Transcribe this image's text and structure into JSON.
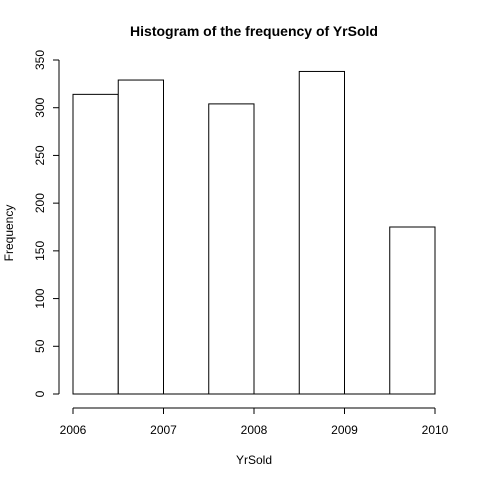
{
  "chart_data": {
    "type": "bar",
    "title": "Histogram of the frequency of YrSold",
    "xlabel": "YrSold",
    "ylabel": "Frequency",
    "bins": [
      {
        "start": 2006.0,
        "end": 2006.5,
        "value": 314
      },
      {
        "start": 2006.5,
        "end": 2007.0,
        "value": 329
      },
      {
        "start": 2007.0,
        "end": 2007.5,
        "value": 0
      },
      {
        "start": 2007.5,
        "end": 2008.0,
        "value": 304
      },
      {
        "start": 2008.0,
        "end": 2008.5,
        "value": 0
      },
      {
        "start": 2008.5,
        "end": 2009.0,
        "value": 338
      },
      {
        "start": 2009.0,
        "end": 2009.5,
        "value": 0
      },
      {
        "start": 2009.5,
        "end": 2010.0,
        "value": 175
      }
    ],
    "xlim": [
      2006,
      2010
    ],
    "ylim": [
      0,
      350
    ],
    "x_ticks": [
      "2006",
      "2007",
      "2008",
      "2009",
      "2010"
    ],
    "y_ticks": [
      "0",
      "50",
      "100",
      "150",
      "200",
      "250",
      "300",
      "350"
    ],
    "grid": false,
    "legend": "none",
    "colors": {
      "bar_fill": "#ffffff",
      "bar_stroke": "#000000"
    }
  }
}
